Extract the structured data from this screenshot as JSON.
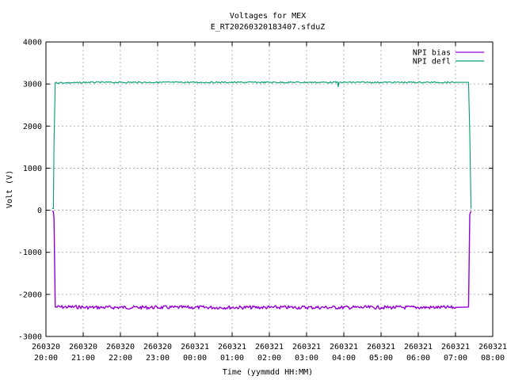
{
  "chart_data": {
    "type": "line",
    "title": "Voltages for MEX",
    "subtitle": "E_RT20260320183407.sfduZ",
    "xlabel": "Time (yymmdd HH:MM)",
    "ylabel": "Volt (V)",
    "xlim": [
      "2026-03-20 20:00",
      "2026-03-21 08:00"
    ],
    "ylim": [
      -3000,
      4000
    ],
    "grid": true,
    "legend_position": "top-right",
    "x_ticks": [
      {
        "date": "260320",
        "time": "20:00"
      },
      {
        "date": "260320",
        "time": "21:00"
      },
      {
        "date": "260320",
        "time": "22:00"
      },
      {
        "date": "260320",
        "time": "23:00"
      },
      {
        "date": "260321",
        "time": "00:00"
      },
      {
        "date": "260321",
        "time": "01:00"
      },
      {
        "date": "260321",
        "time": "02:00"
      },
      {
        "date": "260321",
        "time": "03:00"
      },
      {
        "date": "260321",
        "time": "04:00"
      },
      {
        "date": "260321",
        "time": "05:00"
      },
      {
        "date": "260321",
        "time": "06:00"
      },
      {
        "date": "260321",
        "time": "07:00"
      },
      {
        "date": "260321",
        "time": "08:00"
      }
    ],
    "y_ticks": [
      "-3000",
      "-2000",
      "-1000",
      "0",
      "1000",
      "2000",
      "3000",
      "4000"
    ],
    "series": [
      {
        "name": "NPI bias",
        "color": "#9400d3",
        "points": [
          [
            "2026-03-20 20:10",
            -20
          ],
          [
            "2026-03-20 20:12",
            -30
          ],
          [
            "2026-03-20 20:13",
            -200
          ],
          [
            "2026-03-20 20:15",
            -2300
          ],
          [
            "2026-03-20 21:00",
            -2310
          ],
          [
            "2026-03-20 22:00",
            -2310
          ],
          [
            "2026-03-20 23:00",
            -2310
          ],
          [
            "2026-03-21 00:00",
            -2310
          ],
          [
            "2026-03-21 01:00",
            -2310
          ],
          [
            "2026-03-21 02:00",
            -2310
          ],
          [
            "2026-03-21 03:00",
            -2310
          ],
          [
            "2026-03-21 04:00",
            -2310
          ],
          [
            "2026-03-21 05:00",
            -2310
          ],
          [
            "2026-03-21 06:00",
            -2310
          ],
          [
            "2026-03-21 07:00",
            -2310
          ],
          [
            "2026-03-21 07:21",
            -2300
          ],
          [
            "2026-03-21 07:23",
            -100
          ],
          [
            "2026-03-21 07:25",
            -20
          ]
        ]
      },
      {
        "name": "NPI defl",
        "color": "#009e73",
        "points": [
          [
            "2026-03-20 20:10",
            40
          ],
          [
            "2026-03-20 20:12",
            40
          ],
          [
            "2026-03-20 20:13",
            1600
          ],
          [
            "2026-03-20 20:15",
            3030
          ],
          [
            "2026-03-20 21:00",
            3040
          ],
          [
            "2026-03-20 22:00",
            3040
          ],
          [
            "2026-03-20 23:00",
            3040
          ],
          [
            "2026-03-21 00:00",
            3040
          ],
          [
            "2026-03-21 01:00",
            3040
          ],
          [
            "2026-03-21 02:00",
            3040
          ],
          [
            "2026-03-21 03:00",
            3040
          ],
          [
            "2026-03-21 03:50",
            3040
          ],
          [
            "2026-03-21 03:51",
            2930
          ],
          [
            "2026-03-21 03:52",
            3040
          ],
          [
            "2026-03-21 05:00",
            3040
          ],
          [
            "2026-03-21 06:00",
            3040
          ],
          [
            "2026-03-21 07:00",
            3040
          ],
          [
            "2026-03-21 07:21",
            3040
          ],
          [
            "2026-03-21 07:23",
            1800
          ],
          [
            "2026-03-21 07:25",
            40
          ]
        ]
      }
    ]
  }
}
